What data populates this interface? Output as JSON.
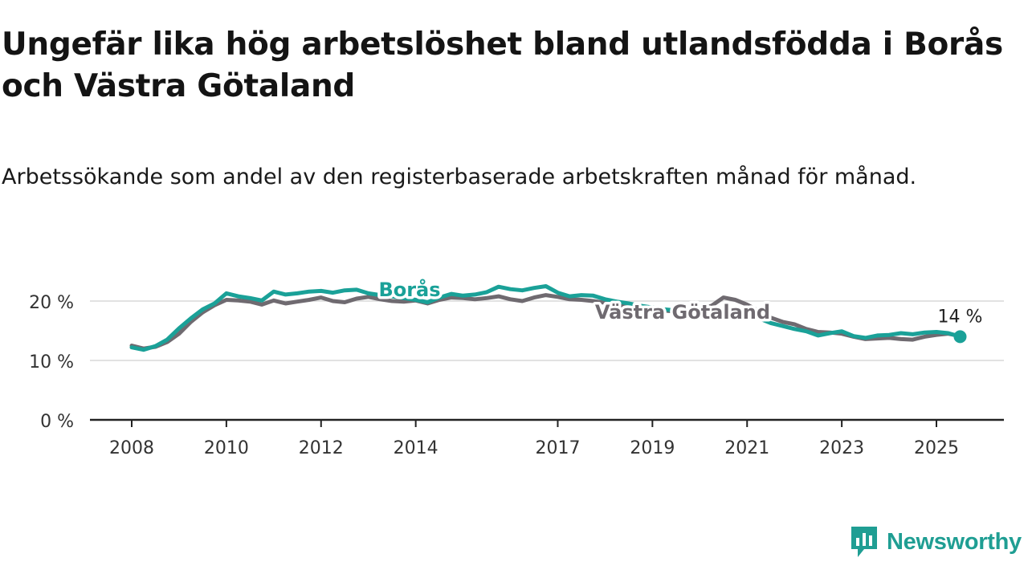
{
  "title": "Ungefär lika hög arbetslöshet bland utlandsfödda i Borås och Västra Götaland",
  "subtitle": "Arbetssökande som andel av den registerbaserade arbetskraften månad för månad.",
  "colors": {
    "boras": "#1aa198",
    "vg": "#6f6a70",
    "grid": "#d9d9d9",
    "axis": "#222222"
  },
  "logo": {
    "text": "Newsworthy",
    "icon": "bar-chart-logo-icon"
  },
  "chart_data": {
    "type": "line",
    "x_axis_unit": "year",
    "x_ticks": [
      2008,
      2010,
      2012,
      2014,
      2017,
      2019,
      2021,
      2023,
      2025
    ],
    "y_ticks": [
      0,
      10,
      20
    ],
    "y_tick_labels": [
      "0 %",
      "10 %",
      "20 %"
    ],
    "ylim": [
      0,
      22
    ],
    "grid": "horizontal",
    "end_label": "14 %",
    "series": [
      {
        "name": "Borås",
        "key": "boras",
        "points": [
          [
            2008.0,
            12.2
          ],
          [
            2008.25,
            11.8
          ],
          [
            2008.5,
            12.4
          ],
          [
            2008.75,
            13.5
          ],
          [
            2009.0,
            15.4
          ],
          [
            2009.25,
            17.1
          ],
          [
            2009.5,
            18.6
          ],
          [
            2009.75,
            19.6
          ],
          [
            2010.0,
            21.3
          ],
          [
            2010.25,
            20.8
          ],
          [
            2010.5,
            20.5
          ],
          [
            2010.75,
            20.1
          ],
          [
            2011.0,
            21.6
          ],
          [
            2011.25,
            21.1
          ],
          [
            2011.5,
            21.3
          ],
          [
            2011.75,
            21.6
          ],
          [
            2012.0,
            21.7
          ],
          [
            2012.25,
            21.4
          ],
          [
            2012.5,
            21.8
          ],
          [
            2012.75,
            21.9
          ],
          [
            2013.0,
            21.3
          ],
          [
            2013.25,
            21.0
          ],
          [
            2013.5,
            20.8
          ],
          [
            2013.75,
            20.5
          ],
          [
            2014.0,
            20.2
          ],
          [
            2014.25,
            19.8
          ],
          [
            2014.5,
            20.6
          ],
          [
            2014.75,
            21.2
          ],
          [
            2015.0,
            20.9
          ],
          [
            2015.25,
            21.1
          ],
          [
            2015.5,
            21.5
          ],
          [
            2015.75,
            22.4
          ],
          [
            2016.0,
            22.0
          ],
          [
            2016.25,
            21.8
          ],
          [
            2016.5,
            22.2
          ],
          [
            2016.75,
            22.5
          ],
          [
            2017.0,
            21.4
          ],
          [
            2017.25,
            20.8
          ],
          [
            2017.5,
            21.0
          ],
          [
            2017.75,
            20.9
          ],
          [
            2018.0,
            20.3
          ],
          [
            2018.25,
            19.9
          ],
          [
            2018.5,
            19.6
          ],
          [
            2018.75,
            19.2
          ],
          [
            2019.0,
            18.9
          ],
          [
            2019.25,
            18.6
          ],
          [
            2019.5,
            18.4
          ],
          [
            2019.75,
            18.2
          ],
          [
            2020.0,
            17.8
          ],
          [
            2020.25,
            17.9
          ],
          [
            2020.5,
            18.2
          ],
          [
            2020.75,
            18.1
          ],
          [
            2021.0,
            17.7
          ],
          [
            2021.25,
            17.1
          ],
          [
            2021.5,
            16.3
          ],
          [
            2021.75,
            15.8
          ],
          [
            2022.0,
            15.3
          ],
          [
            2022.25,
            14.9
          ],
          [
            2022.5,
            14.2
          ],
          [
            2022.75,
            14.6
          ],
          [
            2023.0,
            14.9
          ],
          [
            2023.25,
            14.1
          ],
          [
            2023.5,
            13.8
          ],
          [
            2023.75,
            14.2
          ],
          [
            2024.0,
            14.3
          ],
          [
            2024.25,
            14.6
          ],
          [
            2024.5,
            14.4
          ],
          [
            2024.75,
            14.7
          ],
          [
            2025.0,
            14.8
          ],
          [
            2025.25,
            14.6
          ],
          [
            2025.5,
            14.0
          ]
        ]
      },
      {
        "name": "Västra Götaland",
        "key": "vg",
        "points": [
          [
            2008.0,
            12.5
          ],
          [
            2008.25,
            12.0
          ],
          [
            2008.5,
            12.3
          ],
          [
            2008.75,
            13.1
          ],
          [
            2009.0,
            14.5
          ],
          [
            2009.25,
            16.5
          ],
          [
            2009.5,
            18.1
          ],
          [
            2009.75,
            19.3
          ],
          [
            2010.0,
            20.2
          ],
          [
            2010.25,
            20.1
          ],
          [
            2010.5,
            19.9
          ],
          [
            2010.75,
            19.4
          ],
          [
            2011.0,
            20.1
          ],
          [
            2011.25,
            19.6
          ],
          [
            2011.5,
            19.9
          ],
          [
            2011.75,
            20.2
          ],
          [
            2012.0,
            20.6
          ],
          [
            2012.25,
            20.0
          ],
          [
            2012.5,
            19.8
          ],
          [
            2012.75,
            20.4
          ],
          [
            2013.0,
            20.7
          ],
          [
            2013.25,
            20.3
          ],
          [
            2013.5,
            20.0
          ],
          [
            2013.75,
            19.9
          ],
          [
            2014.0,
            20.1
          ],
          [
            2014.25,
            19.6
          ],
          [
            2014.5,
            20.2
          ],
          [
            2014.75,
            20.6
          ],
          [
            2015.0,
            20.5
          ],
          [
            2015.25,
            20.3
          ],
          [
            2015.5,
            20.5
          ],
          [
            2015.75,
            20.8
          ],
          [
            2016.0,
            20.3
          ],
          [
            2016.25,
            20.0
          ],
          [
            2016.5,
            20.6
          ],
          [
            2016.75,
            21.0
          ],
          [
            2017.0,
            20.7
          ],
          [
            2017.25,
            20.3
          ],
          [
            2017.5,
            20.2
          ],
          [
            2017.75,
            20.0
          ],
          [
            2018.0,
            19.7
          ],
          [
            2018.25,
            19.4
          ],
          [
            2018.5,
            19.1
          ],
          [
            2018.75,
            18.9
          ],
          [
            2019.0,
            18.6
          ],
          [
            2019.25,
            18.4
          ],
          [
            2019.5,
            18.2
          ],
          [
            2019.75,
            18.0
          ],
          [
            2020.0,
            18.7
          ],
          [
            2020.25,
            19.2
          ],
          [
            2020.5,
            20.6
          ],
          [
            2020.75,
            20.2
          ],
          [
            2021.0,
            19.4
          ],
          [
            2021.25,
            18.3
          ],
          [
            2021.5,
            17.2
          ],
          [
            2021.75,
            16.5
          ],
          [
            2022.0,
            16.1
          ],
          [
            2022.25,
            15.3
          ],
          [
            2022.5,
            14.8
          ],
          [
            2022.75,
            14.7
          ],
          [
            2023.0,
            14.5
          ],
          [
            2023.25,
            14.0
          ],
          [
            2023.5,
            13.6
          ],
          [
            2023.75,
            13.7
          ],
          [
            2024.0,
            13.8
          ],
          [
            2024.25,
            13.6
          ],
          [
            2024.5,
            13.5
          ],
          [
            2024.75,
            14.0
          ],
          [
            2025.0,
            14.3
          ],
          [
            2025.25,
            14.5
          ],
          [
            2025.5,
            14.1
          ]
        ]
      }
    ]
  }
}
